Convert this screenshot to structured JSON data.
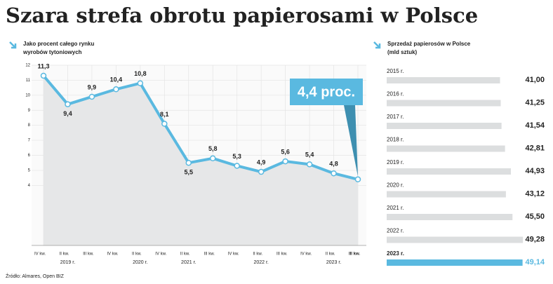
{
  "title": "Szara strefa obrotu papierosami w Polsce",
  "source": "Źródło: Almares, Open BIZ",
  "chart_data": [
    {
      "type": "line",
      "subtitle": [
        "Jako procent całego rynku",
        "wyrobów tytoniowych"
      ],
      "categories": [
        "IV kw.",
        "II kw.",
        "III kw.",
        "IV kw.",
        "II kw.",
        "IV kw.",
        "II kw.",
        "III kw.",
        "IV kw.",
        "II kw.",
        "III kw.",
        "IV kw.",
        "II kw.",
        "III kw."
      ],
      "year_labels": [
        "2019 r.",
        "2020 r.",
        "2021 r.",
        "2022 r.",
        "2023 r."
      ],
      "values": [
        11.3,
        9.4,
        9.9,
        10.4,
        10.8,
        8.1,
        5.5,
        5.8,
        5.3,
        4.9,
        5.6,
        5.4,
        4.8,
        4.4
      ],
      "value_labels": [
        "11,3",
        "9,4",
        "9,9",
        "10,4",
        "10,8",
        "8,1",
        "5,5",
        "5,8",
        "5,3",
        "4,9",
        "5,6",
        "5,4",
        "4,8",
        null
      ],
      "annotation": "4,4 proc.",
      "color": "#5ab9e0",
      "ylim": [
        0,
        12
      ],
      "yticks": [
        4,
        5,
        6,
        7,
        8,
        9,
        10,
        11,
        12
      ],
      "grid": true
    },
    {
      "type": "hbar",
      "subtitle": [
        "Sprzedaż papierosów w Polsce",
        "(mld sztuk)"
      ],
      "categories": [
        "2015 r.",
        "2016 r.",
        "2017 r.",
        "2018 r.",
        "2019 r.",
        "2020 r.",
        "2021 r.",
        "2022 r.",
        "2023 r."
      ],
      "values": [
        41.0,
        41.25,
        41.54,
        42.81,
        44.93,
        43.12,
        45.5,
        49.28,
        49.14
      ],
      "value_labels": [
        "41,00",
        "41,25",
        "41,54",
        "42,81",
        "44,93",
        "43,12",
        "45,50",
        "49,28",
        "49,14"
      ],
      "color": "#dcdedf",
      "highlight": "2023 r.",
      "highlight_color": "#5ab9e0",
      "xlim": [
        0,
        50
      ]
    }
  ]
}
